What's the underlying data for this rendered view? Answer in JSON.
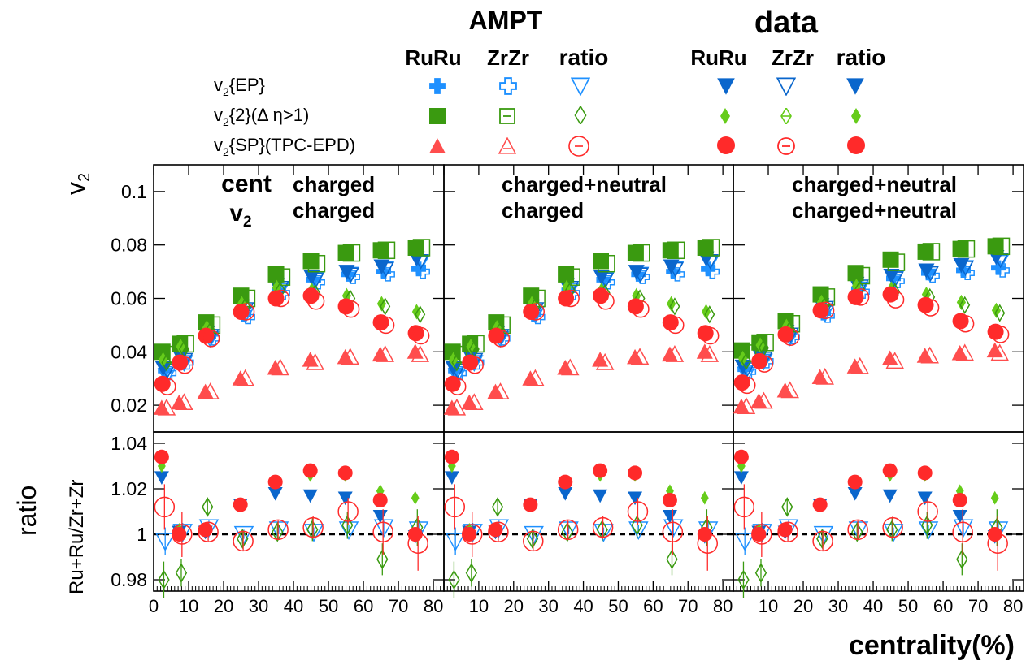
{
  "colors": {
    "ruru_ampt": "#1e90ff",
    "ep_data": "#0a66cc",
    "green": "#3a9a10",
    "green_light": "#66cc1a",
    "red": "#ff2a2a",
    "red_light": "#ff4d4d",
    "axis": "#000000"
  },
  "legend": {
    "ampt_title": "AMPT",
    "data_title": "data",
    "col_ruru": "RuRu",
    "col_zrzr": "ZrZr",
    "col_ratio": "ratio",
    "row_ep": {
      "base": "v",
      "sub": "2",
      "rest": "{EP}"
    },
    "row_v22": {
      "base": "v",
      "sub": "2",
      "rest": "{2}(Δ η>1)"
    },
    "row_sp": {
      "base": "v",
      "sub": "2",
      "rest": "{SP}(TPC-EPD)"
    }
  },
  "chart_data": {
    "type": "scatter",
    "xlabel": "centrality(%)",
    "ylabel_top": {
      "base": "v",
      "sub": "2"
    },
    "ylabel_bottom_main": "ratio",
    "ylabel_bottom_sub": "Ru+Ru/Zr+Zr",
    "xlim": [
      0,
      83
    ],
    "xticks": [
      "0",
      "10",
      "20",
      "30",
      "40",
      "50",
      "60",
      "70",
      "80"
    ],
    "top_ylim": [
      0.01,
      0.11
    ],
    "top_yticks": [
      "0.02",
      "0.04",
      "0.06",
      "0.08",
      "0.1"
    ],
    "bottom_ylim": [
      0.975,
      1.045
    ],
    "bottom_yticks": [
      "0.98",
      "1",
      "1.02",
      "1.04"
    ],
    "reference_line": 1.0,
    "panels": [
      {
        "label_lines": [
          "charged",
          "charged"
        ],
        "cent_label": "cent",
        "v2_label_base": "v",
        "v2_label_sub": "2"
      },
      {
        "label_lines": [
          "charged+neutral",
          "charged"
        ]
      },
      {
        "label_lines": [
          "charged+neutral",
          "charged+neutral"
        ]
      }
    ],
    "x": [
      2.5,
      7.5,
      15,
      25,
      35,
      45,
      55,
      65,
      75
    ],
    "top_series": [
      {
        "name": "AMPT RuRu v2{EP}",
        "values": [
          0.033,
          0.037,
          0.046,
          0.054,
          0.063,
          0.067,
          0.069,
          0.07,
          0.071
        ]
      },
      {
        "name": "AMPT ZrZr v2{EP}",
        "values": [
          0.032,
          0.036,
          0.045,
          0.053,
          0.062,
          0.066,
          0.068,
          0.069,
          0.07
        ]
      },
      {
        "name": "AMPT ratio v2{EP}",
        "values": [
          0.031,
          0.036,
          0.045,
          0.054,
          0.063,
          0.067,
          0.069,
          0.071,
          0.073
        ]
      },
      {
        "name": "data RuRu v2{EP}",
        "values": [
          0.034,
          0.038,
          0.047,
          0.057,
          0.065,
          0.068,
          0.07,
          0.072,
          0.075
        ]
      },
      {
        "name": "data ZrZr v2{EP}",
        "values": [
          0.033,
          0.037,
          0.046,
          0.056,
          0.064,
          0.067,
          0.069,
          0.071,
          0.074
        ]
      },
      {
        "name": "AMPT RuRu v2{2}",
        "values": [
          0.04,
          0.043,
          0.051,
          0.061,
          0.069,
          0.074,
          0.077,
          0.078,
          0.079
        ]
      },
      {
        "name": "AMPT ZrZr v2{2}",
        "values": [
          0.039,
          0.043,
          0.05,
          0.06,
          0.068,
          0.073,
          0.077,
          0.078,
          0.079
        ]
      },
      {
        "name": "data RuRu v2{2}",
        "values": [
          0.037,
          0.042,
          0.049,
          0.058,
          0.064,
          0.063,
          0.061,
          0.058,
          0.055
        ]
      },
      {
        "name": "data ZrZr v2{2}",
        "values": [
          0.036,
          0.041,
          0.048,
          0.057,
          0.063,
          0.062,
          0.06,
          0.057,
          0.054
        ]
      },
      {
        "name": "AMPT RuRu v2{SP}",
        "values": [
          0.019,
          0.021,
          0.025,
          0.03,
          0.034,
          0.037,
          0.038,
          0.039,
          0.04
        ]
      },
      {
        "name": "AMPT ZrZr v2{SP}",
        "values": [
          0.019,
          0.021,
          0.025,
          0.03,
          0.034,
          0.036,
          0.038,
          0.039,
          0.039
        ]
      },
      {
        "name": "data RuRu v2{SP}",
        "values": [
          0.028,
          0.036,
          0.046,
          0.055,
          0.06,
          0.061,
          0.057,
          0.051,
          0.047
        ]
      },
      {
        "name": "data ZrZr v2{SP}",
        "values": [
          0.027,
          0.035,
          0.045,
          0.055,
          0.06,
          0.059,
          0.056,
          0.05,
          0.046
        ]
      }
    ],
    "bottom_series": [
      {
        "name": "AMPT ratio v2{EP}",
        "values": [
          0.997,
          1.001,
          1.003,
          1.0,
          1.002,
          1.001,
          1.002,
          1.003,
          1.002
        ],
        "errors": [
          0.006,
          0.004,
          0.003,
          0.002,
          0.002,
          0.002,
          0.002,
          0.003,
          0.003
        ]
      },
      {
        "name": "data ratio v2{EP}",
        "values": [
          1.025,
          1.001,
          1.001,
          1.013,
          1.018,
          1.017,
          1.016,
          1.008,
          0.999
        ],
        "errors": [
          0.002,
          0.001,
          0.001,
          0.001,
          0.001,
          0.001,
          0.001,
          0.001,
          0.001
        ]
      },
      {
        "name": "AMPT ratio v2{2}",
        "values": [
          0.98,
          0.983,
          1.012,
          0.998,
          1.001,
          1.002,
          1.004,
          0.989,
          1.003
        ],
        "errors": [
          0.008,
          0.006,
          0.004,
          0.004,
          0.004,
          0.005,
          0.006,
          0.007,
          0.008
        ]
      },
      {
        "name": "data ratio v2{2}",
        "values": [
          1.03,
          1.002,
          1.002,
          1.013,
          1.023,
          1.026,
          1.026,
          1.019,
          1.016
        ],
        "errors": [
          0.002,
          0.001,
          0.001,
          0.001,
          0.001,
          0.001,
          0.001,
          0.002,
          0.002
        ]
      },
      {
        "name": "AMPT ratio v2{SP}",
        "values": [
          1.012,
          1.0,
          1.001,
          0.997,
          1.002,
          1.003,
          1.01,
          1.001,
          0.996
        ],
        "errors": [
          0.01,
          0.01,
          0.004,
          0.004,
          0.004,
          0.005,
          0.006,
          0.01,
          0.012
        ]
      },
      {
        "name": "data ratio v2{SP}",
        "values": [
          1.034,
          1.0,
          1.002,
          1.013,
          1.023,
          1.028,
          1.027,
          1.015,
          1.0
        ],
        "errors": [
          0.002,
          0.001,
          0.001,
          0.001,
          0.001,
          0.001,
          0.001,
          0.002,
          0.002
        ]
      }
    ]
  }
}
